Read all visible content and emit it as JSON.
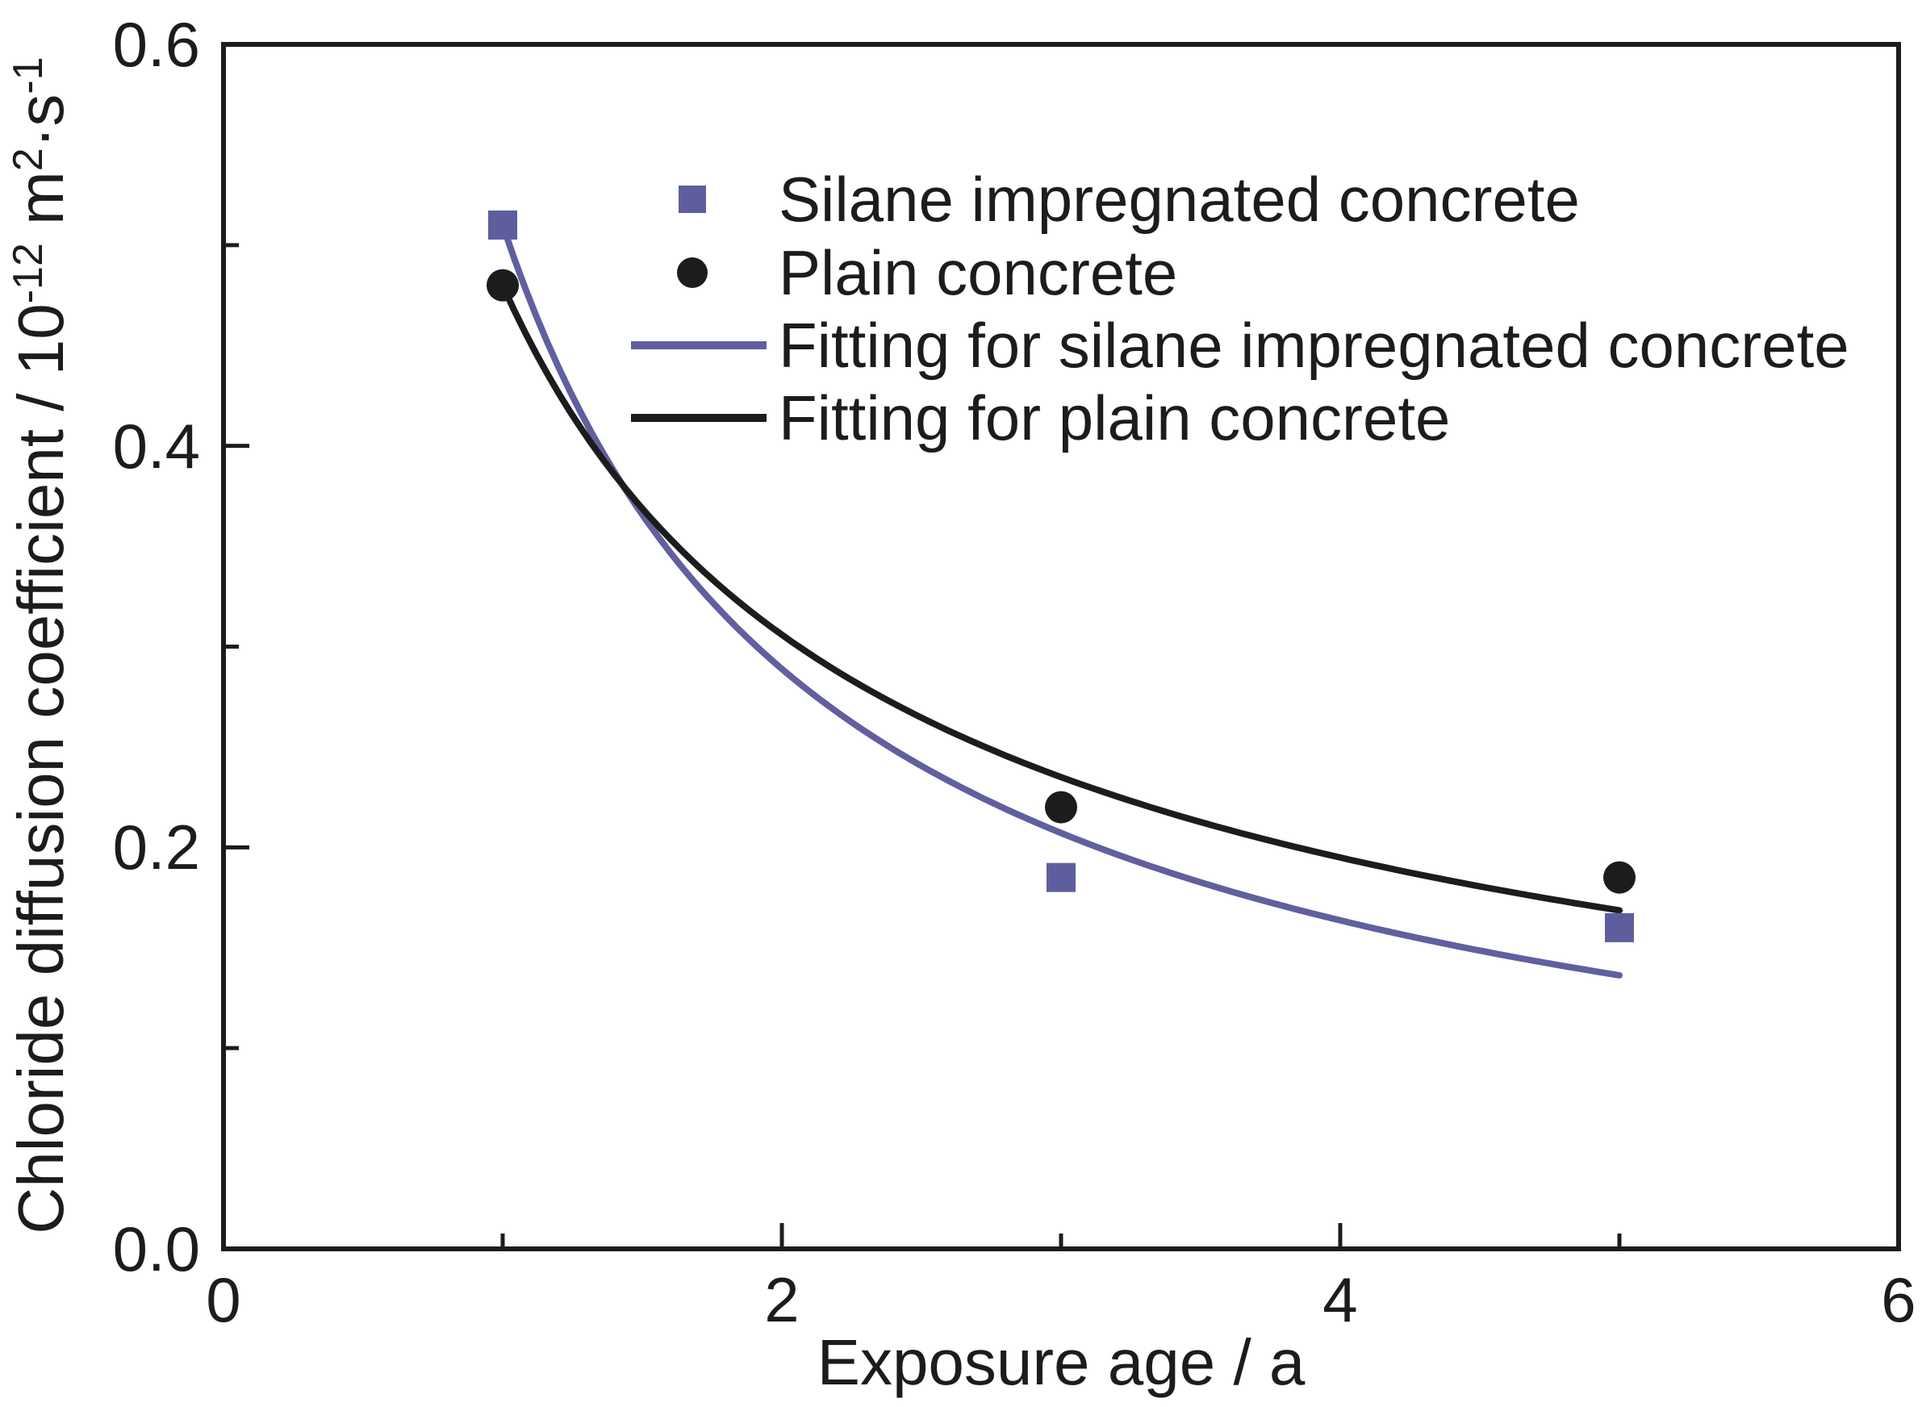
{
  "figure": {
    "background": "#ffffff",
    "frame_color": "#1c1c1c"
  },
  "chart_data": {
    "type": "scatter",
    "title": "",
    "xlabel": "Exposure age / a",
    "ylabel": "Chloride diffusion coefficient / 10⁻¹² m²·s⁻¹",
    "ylabel_parts": [
      {
        "t": "Chloride diffusion coefficient / 10",
        "sup": false
      },
      {
        "t": "-12",
        "sup": true
      },
      {
        "t": " m",
        "sup": false
      },
      {
        "t": "2",
        "sup": true
      },
      {
        "t": "·s",
        "sup": false
      },
      {
        "t": "-1",
        "sup": true
      }
    ],
    "xlim": [
      0,
      6
    ],
    "ylim": [
      0.0,
      0.6
    ],
    "x_major_ticks": [
      0,
      2,
      4,
      6
    ],
    "x_minor_ticks": [
      1,
      3,
      5
    ],
    "x_tick_labels": [
      "0",
      "2",
      "4",
      "6"
    ],
    "y_major_ticks": [
      0.0,
      0.2,
      0.4,
      0.6
    ],
    "y_minor_ticks": [
      0.1,
      0.3,
      0.5
    ],
    "y_tick_labels": [
      "0.0",
      "0.2",
      "0.4",
      "0.6"
    ],
    "grid": "off",
    "legend_position": "inside top center-right",
    "series": [
      {
        "name": "Silane impregnated concrete",
        "type": "scatter",
        "marker": "square",
        "color": "#5e5e9e",
        "x": [
          1,
          3,
          5
        ],
        "y": [
          0.51,
          0.185,
          0.16
        ]
      },
      {
        "name": "Plain concrete",
        "type": "scatter",
        "marker": "circle",
        "color": "#1c1c1c",
        "x": [
          1,
          3,
          5
        ],
        "y": [
          0.48,
          0.22,
          0.185
        ]
      },
      {
        "name": "Fitting for silane impregnated concrete",
        "type": "line",
        "color": "#615f9f",
        "fit_model": "D(t) = D1 * t^(-m)",
        "fit_params": {
          "D1": 0.51,
          "m": 0.82
        },
        "x_range": [
          1,
          5
        ],
        "sampled_y_at_1_2_3_4_5": [
          0.51,
          0.289,
          0.207,
          0.164,
          0.136
        ]
      },
      {
        "name": "Fitting for plain concrete",
        "type": "line",
        "color": "#1c1c1c",
        "fit_model": "D(t) = D1 * t^(-m)",
        "fit_params": {
          "D1": 0.48,
          "m": 0.65
        },
        "x_range": [
          1,
          5
        ],
        "sampled_y_at_1_2_3_4_5": [
          0.48,
          0.306,
          0.235,
          0.195,
          0.169
        ]
      }
    ]
  }
}
